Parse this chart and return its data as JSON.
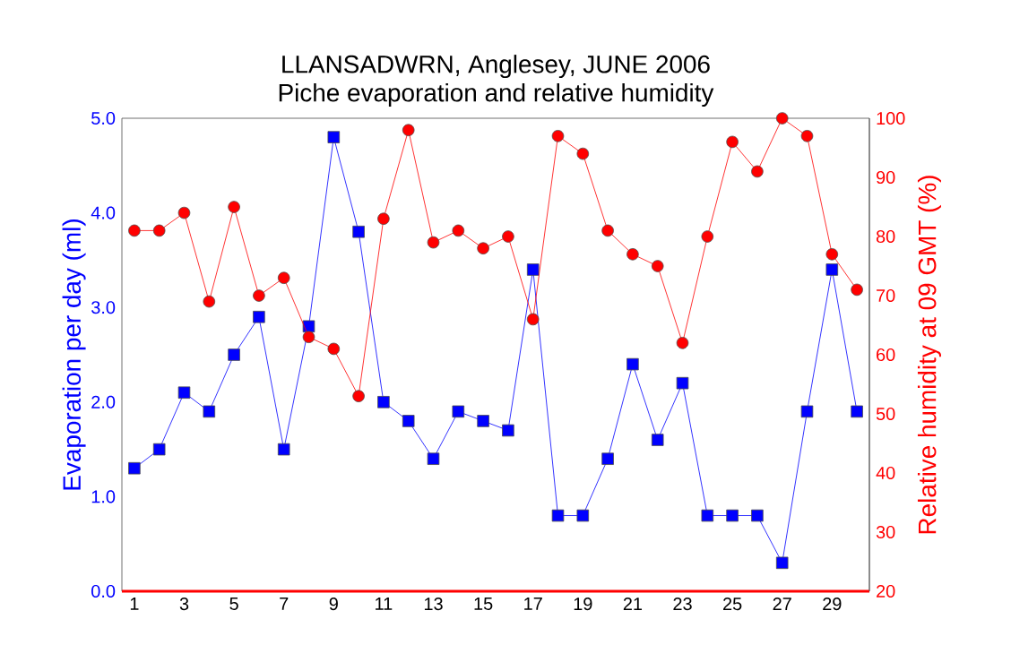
{
  "chart_data": {
    "type": "line",
    "title": "LLANSADWRN, Anglesey, JUNE 2006",
    "subtitle": "Piche evaporation and relative humidity",
    "ylabel": "Evaporation per day (ml)",
    "y2label": "Relative humidity at 09 GMT (%)",
    "x": [
      1,
      2,
      3,
      4,
      5,
      6,
      7,
      8,
      9,
      10,
      11,
      12,
      13,
      14,
      15,
      16,
      17,
      18,
      19,
      20,
      21,
      22,
      23,
      24,
      25,
      26,
      27,
      28,
      29,
      30
    ],
    "xlim": [
      0.5,
      30.5
    ],
    "xticks": [
      1,
      3,
      5,
      7,
      9,
      11,
      13,
      15,
      17,
      19,
      21,
      23,
      25,
      27,
      29
    ],
    "ylim": [
      0,
      5
    ],
    "yticks": [
      {
        "value": 0,
        "label": "0.0"
      },
      {
        "value": 1,
        "label": "1.0"
      },
      {
        "value": 2,
        "label": "2.0"
      },
      {
        "value": 3,
        "label": "3.0"
      },
      {
        "value": 4,
        "label": "4.0"
      },
      {
        "value": 5,
        "label": "5.0"
      }
    ],
    "y2lim": [
      20,
      100
    ],
    "y2ticks": [
      20,
      30,
      40,
      50,
      60,
      70,
      80,
      90,
      100
    ],
    "grid": false,
    "line_style": "solid",
    "series": [
      {
        "color": "#0000ff",
        "marker": "square",
        "values": [
          1.3,
          1.5,
          2.1,
          1.9,
          2.5,
          2.9,
          1.5,
          2.8,
          4.8,
          3.8,
          2.0,
          1.8,
          1.4,
          1.9,
          1.8,
          1.7,
          3.4,
          0.8,
          0.8,
          1.4,
          2.4,
          1.6,
          2.2,
          0.8,
          0.8,
          0.8,
          0.3,
          1.9,
          3.4,
          1.9
        ]
      },
      {
        "color": "#ff0000",
        "marker": "circle",
        "axis": "y2",
        "values": [
          81,
          81,
          84,
          69,
          85,
          70,
          73,
          63,
          61,
          53,
          83,
          98,
          79,
          81,
          78,
          80,
          66,
          97,
          94,
          81,
          77,
          75,
          62,
          80,
          96,
          91,
          100,
          97,
          77,
          71
        ]
      }
    ]
  }
}
